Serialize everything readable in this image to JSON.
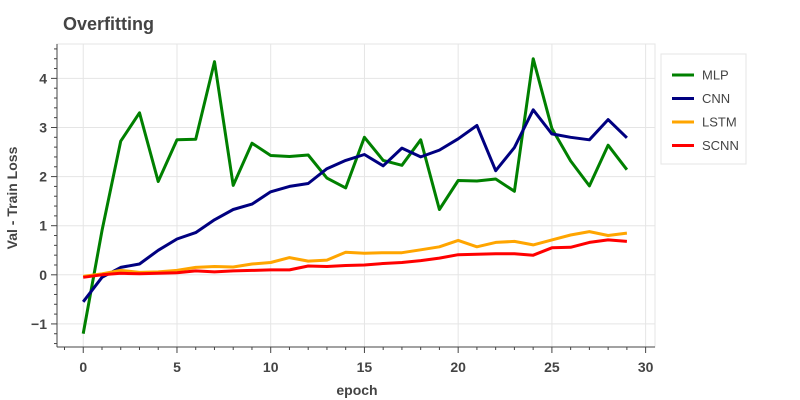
{
  "chart_data": {
    "type": "line",
    "title": "Overfitting",
    "xlabel": "epoch",
    "ylabel": "Val - Train Loss",
    "xlim": [
      -1.4,
      30.5
    ],
    "ylim": [
      -1.47,
      4.7
    ],
    "xticks": [
      0,
      5,
      10,
      15,
      20,
      25,
      30
    ],
    "yticks": [
      -1,
      0,
      1,
      2,
      3,
      4
    ],
    "xtick_labels": [
      "0",
      "5",
      "10",
      "15",
      "20",
      "25",
      "30"
    ],
    "ytick_labels": [
      "−1",
      "0",
      "1",
      "2",
      "3",
      "4"
    ],
    "grid": true,
    "legend_position": "right",
    "x": [
      0,
      1,
      2,
      3,
      4,
      5,
      6,
      7,
      8,
      9,
      10,
      11,
      12,
      13,
      14,
      15,
      16,
      17,
      18,
      19,
      20,
      21,
      22,
      23,
      24,
      25,
      26,
      27,
      28,
      29
    ],
    "series": [
      {
        "name": "MLP",
        "color": "#008000",
        "values": [
          -1.2,
          0.9,
          2.72,
          3.3,
          1.9,
          2.75,
          2.76,
          4.34,
          1.82,
          2.68,
          2.43,
          2.41,
          2.44,
          1.97,
          1.77,
          2.8,
          2.33,
          2.23,
          2.75,
          1.33,
          1.92,
          1.91,
          1.95,
          1.7,
          4.4,
          2.98,
          2.32,
          1.81,
          2.64,
          2.14
        ]
      },
      {
        "name": "CNN",
        "color": "#000080",
        "values": [
          -0.55,
          -0.05,
          0.15,
          0.22,
          0.5,
          0.73,
          0.86,
          1.12,
          1.33,
          1.44,
          1.69,
          1.8,
          1.86,
          2.16,
          2.33,
          2.45,
          2.22,
          2.58,
          2.4,
          2.54,
          2.77,
          3.04,
          2.12,
          2.59,
          3.36,
          2.87,
          2.8,
          2.75,
          3.16,
          2.79
        ]
      },
      {
        "name": "LSTM",
        "color": "#FFA500",
        "values": [
          -0.03,
          0.02,
          0.09,
          0.05,
          0.06,
          0.09,
          0.15,
          0.17,
          0.16,
          0.22,
          0.25,
          0.35,
          0.28,
          0.3,
          0.46,
          0.44,
          0.45,
          0.45,
          0.51,
          0.57,
          0.7,
          0.57,
          0.66,
          0.68,
          0.61,
          0.71,
          0.81,
          0.88,
          0.8,
          0.85
        ]
      },
      {
        "name": "SCNN",
        "color": "#FF0000",
        "values": [
          -0.05,
          0.0,
          0.03,
          0.02,
          0.03,
          0.04,
          0.08,
          0.06,
          0.08,
          0.09,
          0.1,
          0.1,
          0.18,
          0.17,
          0.19,
          0.2,
          0.23,
          0.25,
          0.29,
          0.34,
          0.41,
          0.42,
          0.43,
          0.43,
          0.4,
          0.55,
          0.56,
          0.66,
          0.71,
          0.68
        ]
      }
    ]
  }
}
